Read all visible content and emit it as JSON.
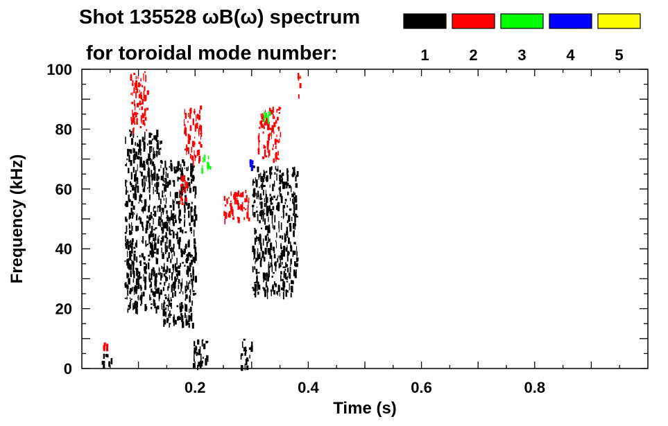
{
  "chart_data": {
    "type": "heatmap",
    "title_line1": "Shot 135528 ωB(ω) spectrum",
    "title_line2": "for toroidal mode number:",
    "xlabel": "Time (s)",
    "ylabel": "Frequency (kHz)",
    "xlim": [
      0,
      1.0
    ],
    "ylim": [
      0,
      100
    ],
    "x_ticks": [
      {
        "value": 0.2,
        "label": "0.2"
      },
      {
        "value": 0.4,
        "label": "0.4"
      },
      {
        "value": 0.6,
        "label": "0.6"
      },
      {
        "value": 0.8,
        "label": "0.8"
      }
    ],
    "y_ticks": [
      {
        "value": 0,
        "label": "0"
      },
      {
        "value": 20,
        "label": "20"
      },
      {
        "value": 40,
        "label": "40"
      },
      {
        "value": 60,
        "label": "60"
      },
      {
        "value": 80,
        "label": "80"
      },
      {
        "value": 100,
        "label": "100"
      }
    ],
    "legend": {
      "placement": "top-right",
      "entries": [
        {
          "label": "1",
          "color": "#000000"
        },
        {
          "label": "2",
          "color": "#ff0000"
        },
        {
          "label": "3",
          "color": "#00ff00"
        },
        {
          "label": "4",
          "color": "#0000ff"
        },
        {
          "label": "5",
          "color": "#ffff00"
        }
      ]
    },
    "regions": [
      {
        "mode": "1",
        "t": [
          0.035,
          0.055
        ],
        "f": [
          2,
          5
        ]
      },
      {
        "mode": "2",
        "t": [
          0.035,
          0.045
        ],
        "f": [
          7,
          9
        ]
      },
      {
        "mode": "1",
        "t": [
          0.075,
          0.14
        ],
        "f": [
          20,
          80
        ]
      },
      {
        "mode": "2",
        "t": [
          0.085,
          0.115
        ],
        "f": [
          80,
          100
        ]
      },
      {
        "mode": "1",
        "t": [
          0.14,
          0.2
        ],
        "f": [
          15,
          70
        ]
      },
      {
        "mode": "2",
        "t": [
          0.17,
          0.185
        ],
        "f": [
          55,
          65
        ]
      },
      {
        "mode": "1",
        "t": [
          0.195,
          0.225
        ],
        "f": [
          1,
          10
        ]
      },
      {
        "mode": "2",
        "t": [
          0.18,
          0.21
        ],
        "f": [
          70,
          88
        ]
      },
      {
        "mode": "3",
        "t": [
          0.21,
          0.225
        ],
        "f": [
          67,
          72
        ]
      },
      {
        "mode": "2",
        "t": [
          0.25,
          0.295
        ],
        "f": [
          50,
          60
        ]
      },
      {
        "mode": "1",
        "t": [
          0.28,
          0.3
        ],
        "f": [
          1,
          10
        ]
      },
      {
        "mode": "1",
        "t": [
          0.3,
          0.38
        ],
        "f": [
          25,
          68
        ]
      },
      {
        "mode": "2",
        "t": [
          0.31,
          0.35
        ],
        "f": [
          70,
          88
        ]
      },
      {
        "mode": "3",
        "t": [
          0.32,
          0.33
        ],
        "f": [
          82,
          86
        ]
      },
      {
        "mode": "4",
        "t": [
          0.295,
          0.3
        ],
        "f": [
          68,
          70
        ]
      },
      {
        "mode": "2",
        "t": [
          0.38,
          0.385
        ],
        "f": [
          90,
          100
        ]
      }
    ]
  }
}
